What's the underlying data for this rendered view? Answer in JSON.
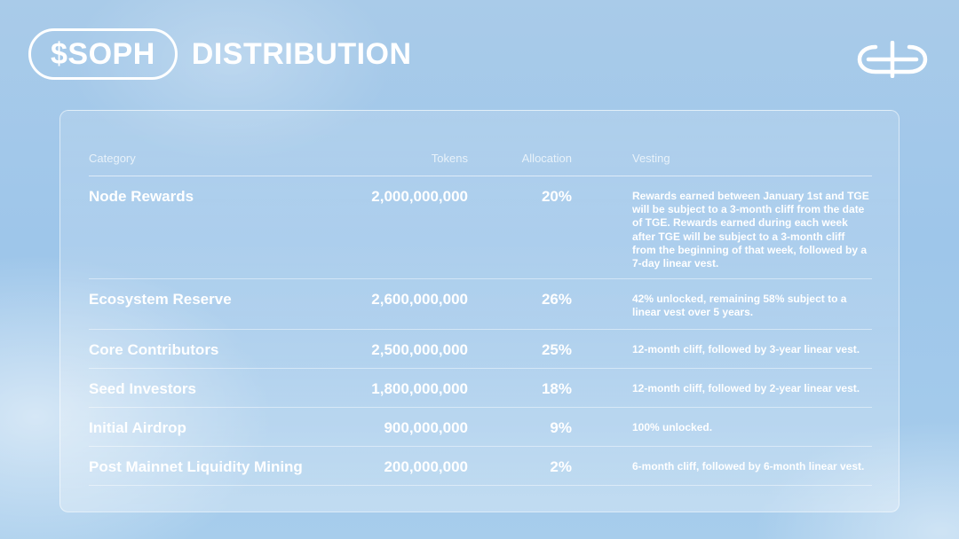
{
  "header": {
    "ticker": "$SOPH",
    "title": "DISTRIBUTION",
    "logo_icon": "soph-logo-icon"
  },
  "table": {
    "columns": {
      "category": "Category",
      "tokens": "Tokens",
      "allocation": "Allocation",
      "vesting": "Vesting"
    },
    "rows": [
      {
        "category": "Node Rewards",
        "tokens": "2,000,000,000",
        "allocation": "20%",
        "vesting": "Rewards earned between January 1st and TGE will be subject to a 3-month cliff from the date of TGE. Rewards earned during each week after TGE will be subject to a 3-month cliff from the beginning of that week, followed by a 7-day linear vest."
      },
      {
        "category": "Ecosystem Reserve",
        "tokens": "2,600,000,000",
        "allocation": "26%",
        "vesting": "42% unlocked, remaining 58% subject to a linear vest over 5 years."
      },
      {
        "category": "Core Contributors",
        "tokens": "2,500,000,000",
        "allocation": "25%",
        "vesting": "12-month cliff, followed by 3-year linear vest."
      },
      {
        "category": "Seed Investors",
        "tokens": "1,800,000,000",
        "allocation": "18%",
        "vesting": "12-month cliff, followed by 2-year linear vest."
      },
      {
        "category": "Initial Airdrop",
        "tokens": "900,000,000",
        "allocation": "9%",
        "vesting": "100% unlocked."
      },
      {
        "category": "Post Mainnet Liquidity Mining",
        "tokens": "200,000,000",
        "allocation": "2%",
        "vesting": "6-month cliff, followed by 6-month linear vest."
      }
    ]
  },
  "colors": {
    "background": "#9ec6ea",
    "text": "#ffffff"
  }
}
